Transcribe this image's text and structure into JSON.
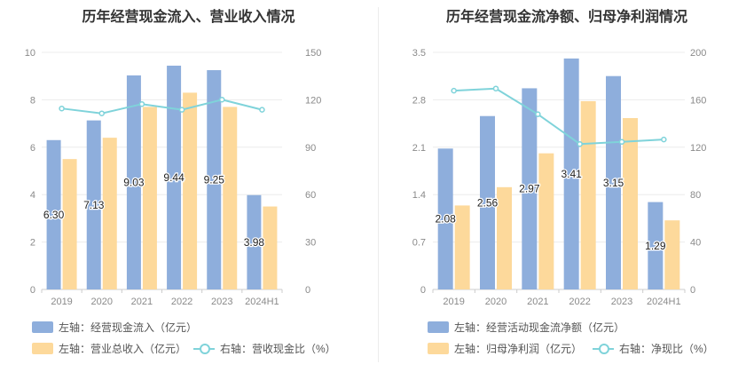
{
  "colors": {
    "bar_blue": "#8eaedc",
    "bar_orange": "#fdd99b",
    "line_teal": "#7fd3da",
    "grid": "#ececec",
    "axis": "#cccccc"
  },
  "chart_data": [
    {
      "type": "bar",
      "title": "历年经营现金流入、营业收入情况",
      "categories": [
        "2019",
        "2020",
        "2021",
        "2022",
        "2023",
        "2024H1"
      ],
      "y_left": {
        "min": 0,
        "max": 10,
        "ticks": [
          "0",
          "2",
          "4",
          "6",
          "8",
          "10"
        ]
      },
      "y_right": {
        "min": 0,
        "max": 150,
        "ticks": [
          "0",
          "30",
          "60",
          "90",
          "120",
          "150"
        ]
      },
      "series": [
        {
          "name": "左轴：经营现金流入（亿元）",
          "kind": "bar",
          "axis": "left",
          "color_key": "bar_blue",
          "values": [
            6.3,
            7.13,
            9.03,
            9.44,
            9.25,
            3.98
          ],
          "labels": [
            "6.30",
            "7.13",
            "9.03",
            "9.44",
            "9.25",
            "3.98"
          ]
        },
        {
          "name": "左轴：营业总收入（亿元）",
          "kind": "bar",
          "axis": "left",
          "color_key": "bar_orange",
          "values": [
            5.5,
            6.4,
            7.7,
            8.3,
            7.7,
            3.5
          ]
        },
        {
          "name": "右轴：营收现金比（%）",
          "kind": "line",
          "axis": "right",
          "color_key": "line_teal",
          "values": [
            114.5,
            111.4,
            117.3,
            113.7,
            120.1,
            113.7
          ]
        }
      ]
    },
    {
      "type": "bar",
      "title": "历年经营现金流净额、归母净利润情况",
      "categories": [
        "2019",
        "2020",
        "2021",
        "2022",
        "2023",
        "2024H1"
      ],
      "y_left": {
        "min": 0,
        "max": 3.5,
        "ticks": [
          "0",
          "0.7",
          "1.4",
          "2.1",
          "2.8",
          "3.5"
        ]
      },
      "y_right": {
        "min": 0,
        "max": 200,
        "ticks": [
          "0",
          "40",
          "80",
          "120",
          "160",
          "200"
        ]
      },
      "series": [
        {
          "name": "左轴：经营活动现金流净额（亿元）",
          "kind": "bar",
          "axis": "left",
          "color_key": "bar_blue",
          "values": [
            2.08,
            2.56,
            2.97,
            3.41,
            3.15,
            1.29
          ],
          "labels": [
            "2.08",
            "2.56",
            "2.97",
            "3.41",
            "3.15",
            "1.29"
          ]
        },
        {
          "name": "左轴：归母净利润（亿元）",
          "kind": "bar",
          "axis": "left",
          "color_key": "bar_orange",
          "values": [
            1.24,
            1.51,
            2.01,
            2.78,
            2.53,
            1.02
          ]
        },
        {
          "name": "右轴：净现比（%）",
          "kind": "line",
          "axis": "right",
          "color_key": "line_teal",
          "values": [
            167.7,
            169.5,
            147.8,
            122.7,
            124.5,
            126.5
          ]
        }
      ]
    }
  ]
}
